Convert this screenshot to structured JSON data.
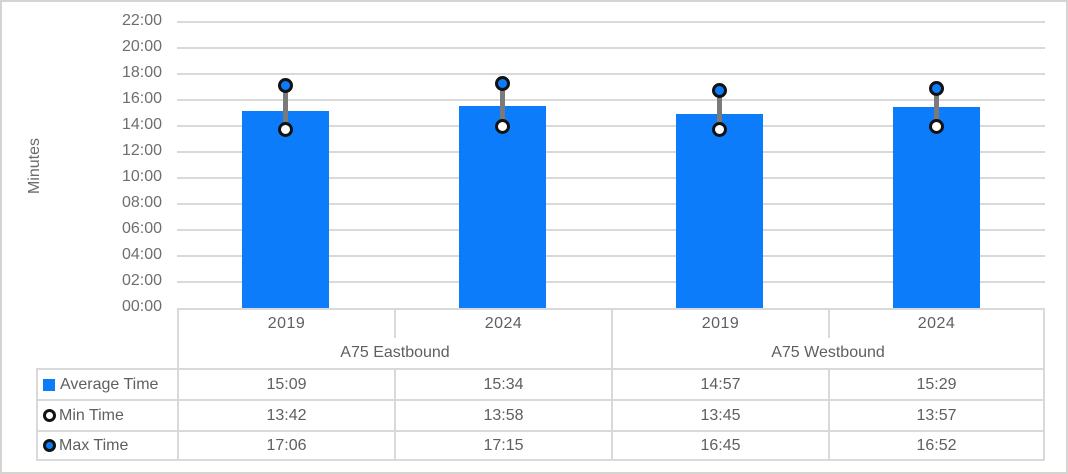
{
  "colors": {
    "bar": "#0d7cfb",
    "marker_ring": "#121212",
    "min_marker_fill": "#ffffff",
    "max_marker_fill": "#0d7cfb",
    "connector": "#7a7a7a",
    "gridline": "#d9d9d9",
    "table_border": "#d9d9d9",
    "text": "#5f5f5f"
  },
  "chart_data": {
    "type": "bar",
    "title": "",
    "xlabel": "",
    "ylabel": "Minutes",
    "grid": true,
    "legend_position": "table-left",
    "y_axis": {
      "unit": "mm:ss",
      "min_minutes": 0,
      "max_minutes": 22,
      "step_minutes": 2,
      "tick_labels_bottom_to_top": [
        "00:00",
        "02:00",
        "04:00",
        "06:00",
        "08:00",
        "10:00",
        "12:00",
        "14:00",
        "16:00",
        "18:00",
        "20:00",
        "22:00"
      ]
    },
    "categories": [
      "A75 Eastbound 2019",
      "A75 Eastbound 2024",
      "A75 Westbound 2019",
      "A75 Westbound 2024"
    ],
    "series": [
      {
        "name": "Average Time",
        "style": "bar",
        "values_mmss": [
          "15:09",
          "15:34",
          "14:57",
          "15:29"
        ]
      },
      {
        "name": "Min Time",
        "style": "open-circle-marker",
        "values_mmss": [
          "13:42",
          "13:58",
          "13:45",
          "13:57"
        ]
      },
      {
        "name": "Max Time",
        "style": "filled-circle-marker",
        "values_mmss": [
          "17:06",
          "17:15",
          "16:45",
          "16:52"
        ]
      }
    ]
  },
  "table": {
    "year_headers": [
      "2019",
      "2024",
      "2019",
      "2024"
    ],
    "group_headers": [
      "A75 Eastbound",
      "A75 Westbound"
    ],
    "rows": [
      {
        "label": "Average Time",
        "marker": "filled-square",
        "values": [
          "15:09",
          "15:34",
          "14:57",
          "15:29"
        ]
      },
      {
        "label": "Min Time",
        "marker": "open-circle",
        "values": [
          "13:42",
          "13:58",
          "13:45",
          "13:57"
        ]
      },
      {
        "label": "Max Time",
        "marker": "filled-circle",
        "values": [
          "17:06",
          "17:15",
          "16:45",
          "16:52"
        ]
      }
    ]
  },
  "axis": {
    "title": "Minutes"
  }
}
